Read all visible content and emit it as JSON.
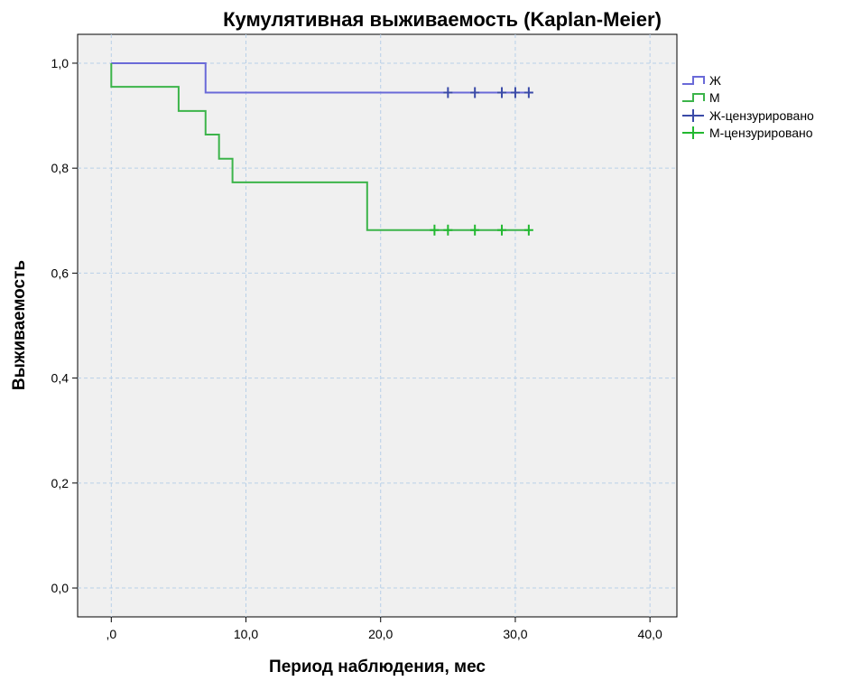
{
  "chart_data": {
    "type": "line",
    "title": "Кумулятивная выживаемость (Kaplan-Meier)",
    "xlabel": "Период наблюдения, мес",
    "ylabel": "Выживаемость",
    "xlim": [
      -2.5,
      42
    ],
    "ylim": [
      -0.055,
      1.055
    ],
    "x_ticks": [
      0,
      10,
      20,
      30,
      40
    ],
    "x_tick_labels": [
      ",0",
      "10,0",
      "20,0",
      "30,0",
      "40,0"
    ],
    "y_ticks": [
      0,
      0.2,
      0.4,
      0.6,
      0.8,
      1.0
    ],
    "y_tick_labels": [
      "0,0",
      "0,2",
      "0,4",
      "0,6",
      "0,8",
      "1,0"
    ],
    "grid": true,
    "legend_position": "right",
    "series": [
      {
        "name": "Ж",
        "color": "#6a6ad8",
        "censor_color": "#3a4aa8",
        "steps": [
          [
            0,
            1.0
          ],
          [
            7,
            0.944
          ],
          [
            31,
            0.944
          ]
        ],
        "censored_x": [
          25,
          27,
          29,
          30,
          31
        ],
        "censor_label": "Ж-цензурировано"
      },
      {
        "name": "М",
        "color": "#3cb44a",
        "censor_color": "#22b830",
        "steps": [
          [
            0,
            1.0
          ],
          [
            0,
            0.955
          ],
          [
            5,
            0.909
          ],
          [
            7,
            0.864
          ],
          [
            8,
            0.818
          ],
          [
            9,
            0.773
          ],
          [
            19,
            0.682
          ],
          [
            31,
            0.682
          ]
        ],
        "censored_x": [
          24,
          25,
          27,
          29,
          31
        ],
        "censor_label": "М-цензурировано"
      }
    ]
  }
}
